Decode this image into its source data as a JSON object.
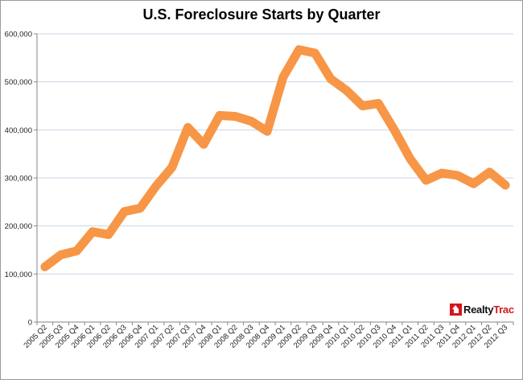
{
  "colors": {
    "line": "#F79646",
    "grid": "#C8D6E5",
    "axis": "#868686"
  },
  "logo": {
    "icon": "house-icon",
    "text_a": "Realty",
    "text_b": "Trac"
  },
  "chart_data": {
    "type": "line",
    "title": "U.S. Foreclosure Starts by Quarter",
    "xlabel": "",
    "ylabel": "",
    "ylim": [
      0,
      600000
    ],
    "yticks": [
      0,
      100000,
      200000,
      300000,
      400000,
      500000,
      600000
    ],
    "ytick_labels": [
      "0",
      "100,000",
      "200,000",
      "300,000",
      "400,000",
      "500,000",
      "600,000"
    ],
    "grid": true,
    "legend": "none",
    "categories": [
      "2005 Q2",
      "2005 Q3",
      "2005 Q4",
      "2006 Q1",
      "2006 Q2",
      "2006 Q3",
      "2006 Q4",
      "2007 Q1",
      "2007 Q2",
      "2007 Q3",
      "2007 Q4",
      "2008 Q1",
      "2008 Q2",
      "2008 Q3",
      "2008 Q4",
      "2009 Q1",
      "2009 Q2",
      "2009 Q3",
      "2009 Q4",
      "2010 Q1",
      "2010 Q2",
      "2010 Q3",
      "2010 Q4",
      "2011 Q1",
      "2011 Q2",
      "2011 Q3",
      "2011 Q4",
      "2012 Q1",
      "2012 Q2",
      "2012 Q3"
    ],
    "series": [
      {
        "values": [
          115000,
          140000,
          148000,
          188000,
          182000,
          230000,
          237000,
          283000,
          322000,
          405000,
          370000,
          430000,
          428000,
          418000,
          397000,
          510000,
          567000,
          560000,
          506000,
          482000,
          450000,
          455000,
          400000,
          340000,
          295000,
          310000,
          305000,
          288000,
          312000,
          285000
        ]
      }
    ]
  }
}
